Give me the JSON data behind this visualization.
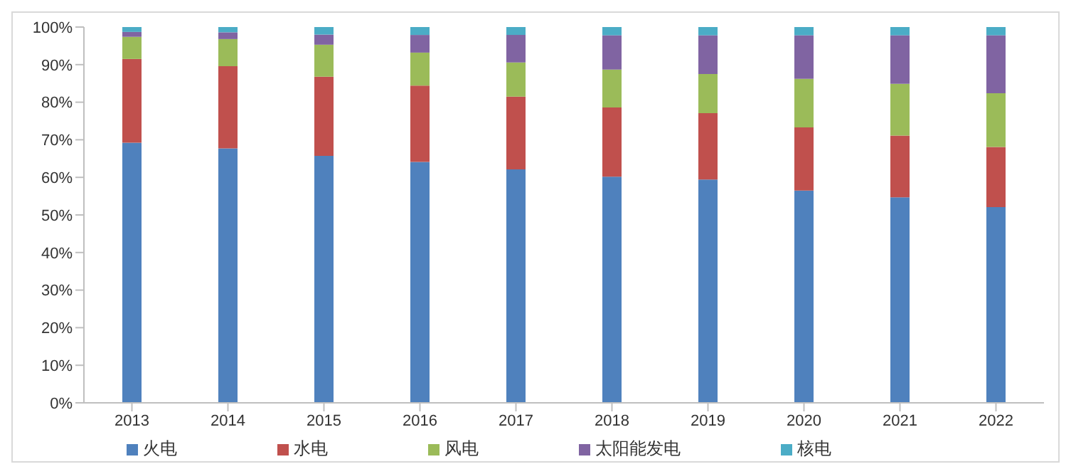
{
  "chart_data": {
    "type": "bar",
    "stacked": true,
    "categories": [
      "2013",
      "2014",
      "2015",
      "2016",
      "2017",
      "2018",
      "2019",
      "2020",
      "2021",
      "2022"
    ],
    "series": [
      {
        "name": "火电",
        "color": "#4f81bd",
        "values": [
          69.2,
          67.7,
          65.7,
          64.1,
          62.1,
          60.2,
          59.4,
          56.5,
          54.7,
          52.1
        ]
      },
      {
        "name": "水电",
        "color": "#c0504d",
        "values": [
          22.3,
          21.9,
          21.1,
          20.3,
          19.4,
          18.4,
          17.7,
          16.8,
          16.4,
          16.0
        ]
      },
      {
        "name": "风电",
        "color": "#9bbb59",
        "values": [
          5.9,
          7.2,
          8.5,
          8.8,
          9.1,
          10.1,
          10.4,
          12.9,
          13.8,
          14.3
        ]
      },
      {
        "name": "太阳能发电",
        "color": "#8064a2",
        "values": [
          1.3,
          1.8,
          2.7,
          4.7,
          7.3,
          9.1,
          10.3,
          11.6,
          12.9,
          15.4
        ]
      },
      {
        "name": "核电",
        "color": "#4bacc6",
        "values": [
          1.3,
          1.4,
          2.0,
          2.1,
          2.1,
          2.2,
          2.2,
          2.2,
          2.2,
          2.2
        ]
      }
    ],
    "ylim": [
      0,
      100
    ],
    "yticks": [
      {
        "value": 0,
        "label": "0%"
      },
      {
        "value": 10,
        "label": "10%"
      },
      {
        "value": 20,
        "label": "20%"
      },
      {
        "value": 30,
        "label": "30%"
      },
      {
        "value": 40,
        "label": "40%"
      },
      {
        "value": 50,
        "label": "50%"
      },
      {
        "value": 60,
        "label": "60%"
      },
      {
        "value": 70,
        "label": "70%"
      },
      {
        "value": 80,
        "label": "80%"
      },
      {
        "value": 90,
        "label": "90%"
      },
      {
        "value": 100,
        "label": "100%"
      }
    ],
    "grid": false,
    "legend": "bottom"
  }
}
